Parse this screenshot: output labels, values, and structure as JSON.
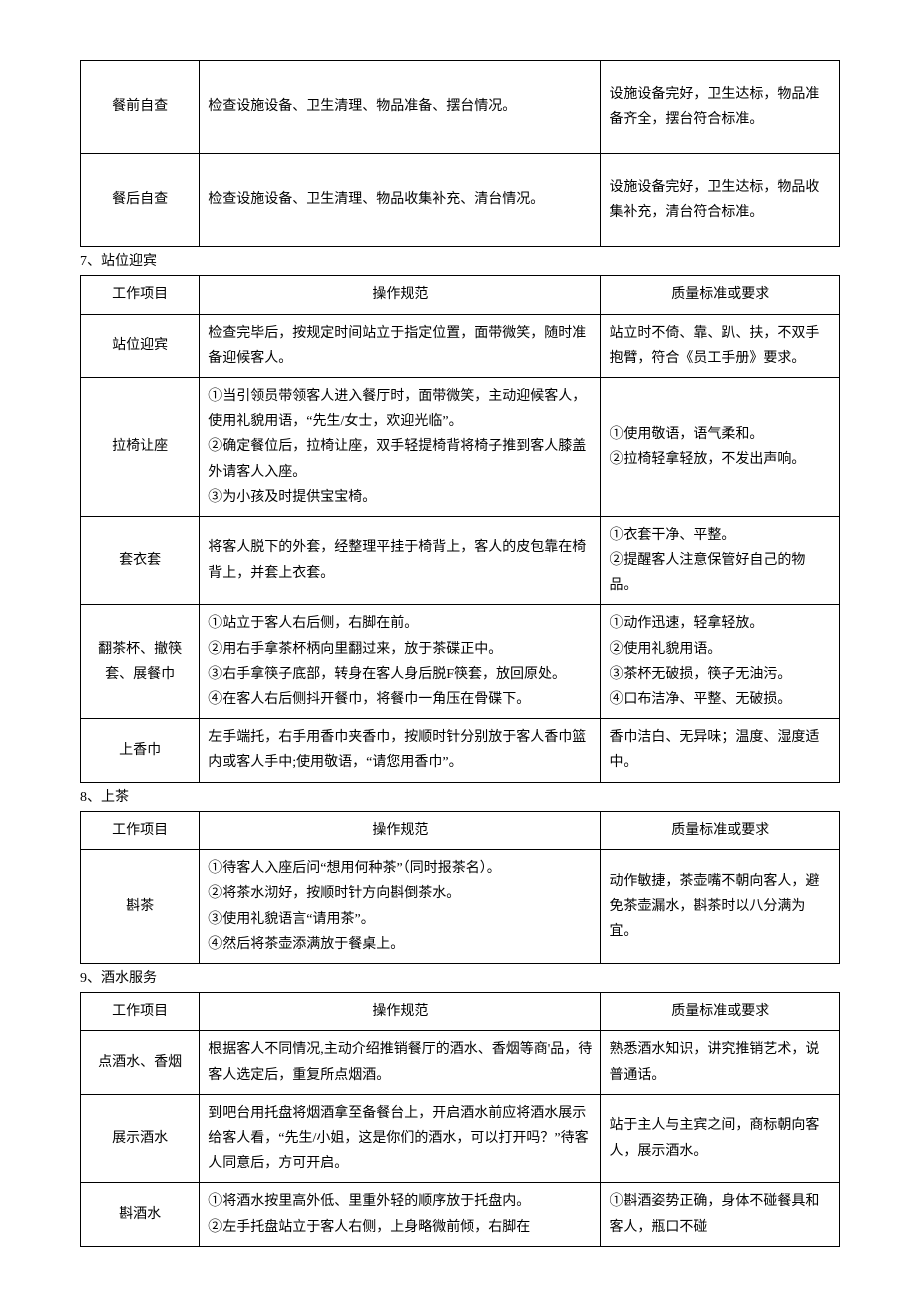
{
  "headers": {
    "col1": "工作项目",
    "col2": "操作规范",
    "col3": "质量标准或要求"
  },
  "intro_table": {
    "rows": [
      {
        "c1": "餐前自查",
        "c2": "检查设施设备、卫生清理、物品准备、摆台情况。",
        "c3": "设施设备完好，卫生达标，物品准备齐全，摆台符合标准。"
      },
      {
        "c1": "餐后自查",
        "c2": "检查设施设备、卫生清理、物品收集补充、清台情况。",
        "c3": "设施设备完好，卫生达标，物品收集补充，清台符合标准。"
      }
    ]
  },
  "section7": {
    "title": "7、站位迎宾",
    "rows": [
      {
        "c1": "站位迎宾",
        "c2": "检查完毕后，按规定时间站立于指定位置，面带微笑，随时准备迎候客人。",
        "c3": "站立时不倚、靠、趴、扶，不双手抱臂，符合《员工手册》要求。"
      },
      {
        "c1": "拉椅让座",
        "c2": "①当引领员带领客人进入餐厅时，面带微笑，主动迎候客人，使用礼貌用语，“先生/女士，欢迎光临”。\n②确定餐位后，拉椅让座，双手轻提椅背将椅子推到客人膝盖外请客人入座。\n③为小孩及时提供宝宝椅。",
        "c3": "①使用敬语，语气柔和。\n②拉椅轻拿轻放，不发出声响。"
      },
      {
        "c1": "套衣套",
        "c2": "将客人脱下的外套，经整理平挂于椅背上，客人的皮包靠在椅背上，并套上衣套。",
        "c3": "①衣套干净、平整。\n②提醒客人注意保管好自己的物品。"
      },
      {
        "c1": "翻茶杯、撤筷套、展餐巾",
        "c2": "①站立于客人右后侧，右脚在前。\n②用右手拿茶杯柄向里翻过来，放于茶碟正中。\n③右手拿筷子底部，转身在客人身后脱F筷套，放回原处。\n④在客人右后侧抖开餐巾，将餐巾一角压在骨碟下。",
        "c3": "①动作迅速，轻拿轻放。\n②使用礼貌用语。\n③茶杯无破损，筷子无油污。\n④口布洁净、平整、无破损。"
      },
      {
        "c1": "上香巾",
        "c2": "左手端托，右手用香巾夹香巾，按顺时针分别放于客人香巾篮内或客人手中;使用敬语，“请您用香巾”。",
        "c3": "香巾洁白、无异味；温度、湿度适中。"
      }
    ]
  },
  "section8": {
    "title": "8、上茶",
    "rows": [
      {
        "c1": "斟茶",
        "c2": "①待客人入座后问“想用何种茶”（同时报茶名）。\n②将茶水沏好，按顺时针方向斟倒茶水。\n③使用礼貌语言“请用茶”。\n④然后将茶壶添满放于餐桌上。",
        "c3": "动作敏捷，茶壶嘴不朝向客人，避免茶壶漏水，斟茶时以八分满为宜。"
      }
    ]
  },
  "section9": {
    "title": "9、酒水服务",
    "rows": [
      {
        "c1": "点酒水、香烟",
        "c2": "根据客人不同情况,主动介绍推销餐厅的酒水、香烟等商'品，待客人选定后，重复所点烟酒。",
        "c3": "熟悉酒水知识，讲究推销艺术，说普通话。"
      },
      {
        "c1": "展示酒水",
        "c2": "到吧台用托盘将烟酒拿至备餐台上，开启酒水前应将酒水展示给客人看，“先生/小姐，这是你们的酒水，可以打开吗？”待客人同意后，方可开启。",
        "c3": "站于主人与主宾之间，商标朝向客人，展示酒水。"
      },
      {
        "c1": "斟酒水",
        "c2": "①将酒水按里高外低、里重外轻的顺序放于托盘内。\n②左手托盘站立于客人右侧，上身略微前倾，右脚在",
        "c3": "①斟酒姿势正确，身体不碰餐具和客人，瓶口不碰"
      }
    ]
  }
}
